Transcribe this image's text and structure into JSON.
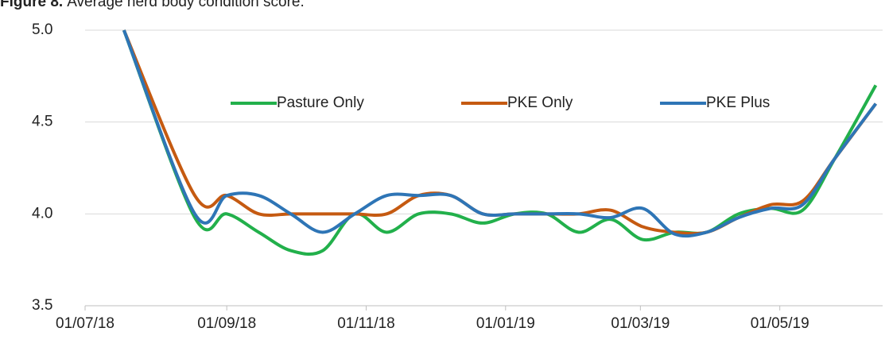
{
  "chart_data": {
    "type": "line",
    "title_label": "Figure 8.",
    "title": "Average herd body condition score.",
    "x": [
      "18/07/18",
      "18/08/18",
      "01/09/18",
      "15/09/18",
      "29/09/18",
      "13/10/18",
      "27/10/18",
      "10/11/18",
      "24/11/18",
      "08/12/18",
      "22/12/18",
      "05/01/19",
      "19/01/19",
      "02/02/19",
      "16/02/19",
      "02/03/19",
      "16/03/19",
      "30/03/19",
      "13/04/19",
      "27/04/19",
      "11/05/19",
      "25/05/19",
      "12/06/19"
    ],
    "series": [
      {
        "name": "Pasture Only",
        "color": "#22b04b",
        "values": [
          5.0,
          3.98,
          4.0,
          3.9,
          3.8,
          3.8,
          4.0,
          3.9,
          4.0,
          4.0,
          3.95,
          4.0,
          4.0,
          3.9,
          3.97,
          3.86,
          3.9,
          3.9,
          4.0,
          4.03,
          4.02,
          4.3,
          4.7
        ]
      },
      {
        "name": "PKE Only",
        "color": "#c55a11",
        "values": [
          5.0,
          4.1,
          4.1,
          4.0,
          4.0,
          4.0,
          4.0,
          4.0,
          4.1,
          4.1,
          4.0,
          4.0,
          4.0,
          4.0,
          4.02,
          3.93,
          3.9,
          3.9,
          3.98,
          4.05,
          4.07,
          4.3,
          4.6
        ]
      },
      {
        "name": "PKE Plus",
        "color": "#2e75b6",
        "values": [
          5.0,
          4.0,
          4.1,
          4.1,
          4.0,
          3.9,
          4.0,
          4.1,
          4.1,
          4.1,
          4.0,
          4.0,
          4.0,
          4.0,
          3.98,
          4.03,
          3.89,
          3.9,
          3.98,
          4.03,
          4.05,
          4.3,
          4.6
        ]
      }
    ],
    "xlim": [
      "01/07/18",
      "15/06/19"
    ],
    "xticks": [
      "01/07/18",
      "01/09/18",
      "01/11/18",
      "01/01/19",
      "01/03/19",
      "01/05/19"
    ],
    "ylim": [
      3.5,
      5.0
    ],
    "yticks": [
      {
        "value": 3.5,
        "label": "3.5"
      },
      {
        "value": 4.0,
        "label": "4.0"
      },
      {
        "value": 4.5,
        "label": "4.5"
      },
      {
        "value": 5.0,
        "label": "5.0"
      }
    ],
    "grid": true,
    "legend": "top"
  }
}
